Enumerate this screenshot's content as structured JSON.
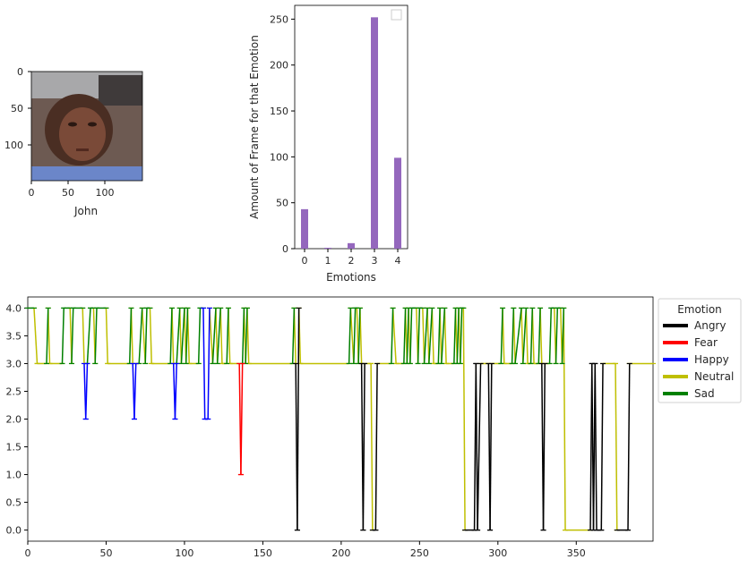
{
  "image_panel": {
    "xlabel": "John",
    "yticks": [
      "0",
      "50",
      "100"
    ],
    "xticks": [
      "0",
      "50",
      "100"
    ],
    "icon": "face-photo"
  },
  "chart_data": [
    {
      "type": "bar",
      "categories": [
        "0",
        "1",
        "2",
        "3",
        "4"
      ],
      "values": [
        43,
        1,
        6,
        252,
        99
      ],
      "xlabel": "Emotions",
      "ylabel": "Amount of Frame for that Emotion",
      "ylim": [
        0,
        265
      ],
      "yticks": [
        "0",
        "50",
        "100",
        "150",
        "200",
        "250"
      ],
      "color": "#9467bd",
      "legend": "top-right (empty)"
    },
    {
      "type": "line",
      "xlim": [
        0,
        399
      ],
      "ylim": [
        -0.2,
        4.2
      ],
      "xticks": [
        "0",
        "50",
        "100",
        "150",
        "200",
        "250",
        "300",
        "350"
      ],
      "yticks": [
        "0.0",
        "0.5",
        "1.0",
        "1.5",
        "2.0",
        "2.5",
        "3.0",
        "3.5",
        "4.0"
      ],
      "legend_title": "Emotion",
      "legend_placement": "outside-right",
      "series": [
        {
          "name": "Angry",
          "color": "#000000"
        },
        {
          "name": "Fear",
          "color": "#ff0000"
        },
        {
          "name": "Happy",
          "color": "#0000ff"
        },
        {
          "name": "Neutral",
          "color": "#bfbf00"
        },
        {
          "name": "Sad",
          "color": "#008000"
        }
      ],
      "segments": [
        [
          0,
          4,
          4,
          4,
          "Sad"
        ],
        [
          4,
          4,
          6,
          3,
          "Neutral"
        ],
        [
          6,
          3,
          12,
          3,
          "Neutral"
        ],
        [
          12,
          3,
          13,
          4,
          "Sad"
        ],
        [
          13,
          4,
          14,
          3,
          "Neutral"
        ],
        [
          14,
          3,
          22,
          3,
          "Neutral"
        ],
        [
          22,
          3,
          23,
          4,
          "Sad"
        ],
        [
          23,
          4,
          27,
          4,
          "Sad"
        ],
        [
          27,
          4,
          28,
          3,
          "Neutral"
        ],
        [
          28,
          3,
          29,
          4,
          "Sad"
        ],
        [
          29,
          4,
          35,
          4,
          "Sad"
        ],
        [
          35,
          4,
          36,
          3,
          "Neutral"
        ],
        [
          36,
          3,
          37,
          2,
          "Happy"
        ],
        [
          37,
          2,
          38,
          3,
          "Happy"
        ],
        [
          38,
          3,
          40,
          4,
          "Sad"
        ],
        [
          40,
          4,
          42,
          4,
          "Sad"
        ],
        [
          42,
          4,
          43,
          3,
          "Neutral"
        ],
        [
          43,
          3,
          44,
          4,
          "Sad"
        ],
        [
          44,
          4,
          50,
          4,
          "Sad"
        ],
        [
          50,
          4,
          51,
          3,
          "Neutral"
        ],
        [
          51,
          3,
          65,
          3,
          "Neutral"
        ],
        [
          65,
          3,
          66,
          4,
          "Sad"
        ],
        [
          66,
          4,
          67,
          3,
          "Neutral"
        ],
        [
          67,
          3,
          68,
          2,
          "Happy"
        ],
        [
          68,
          2,
          69,
          3,
          "Happy"
        ],
        [
          69,
          3,
          71,
          3,
          "Neutral"
        ],
        [
          71,
          3,
          73,
          4,
          "Sad"
        ],
        [
          73,
          4,
          75,
          3,
          "Neutral"
        ],
        [
          75,
          3,
          76,
          4,
          "Sad"
        ],
        [
          76,
          4,
          78,
          4,
          "Sad"
        ],
        [
          78,
          4,
          79,
          3,
          "Neutral"
        ],
        [
          79,
          3,
          91,
          3,
          "Neutral"
        ],
        [
          91,
          3,
          92,
          4,
          "Sad"
        ],
        [
          92,
          4,
          93,
          3,
          "Neutral"
        ],
        [
          93,
          3,
          94,
          2,
          "Happy"
        ],
        [
          94,
          2,
          95,
          3,
          "Happy"
        ],
        [
          95,
          3,
          97,
          4,
          "Sad"
        ],
        [
          97,
          4,
          98,
          3,
          "Neutral"
        ],
        [
          98,
          3,
          100,
          4,
          "Sad"
        ],
        [
          100,
          4,
          101,
          3,
          "Neutral"
        ],
        [
          101,
          3,
          102,
          4,
          "Sad"
        ],
        [
          102,
          4,
          103,
          3,
          "Neutral"
        ],
        [
          103,
          3,
          109,
          3,
          "Neutral"
        ],
        [
          109,
          3,
          110,
          4,
          "Sad"
        ],
        [
          110,
          4,
          112,
          4,
          "Sad"
        ],
        [
          112,
          4,
          113,
          2,
          "Happy"
        ],
        [
          113,
          2,
          115,
          2,
          "Happy"
        ],
        [
          115,
          2,
          116,
          4,
          "Happy"
        ],
        [
          116,
          4,
          118,
          3,
          "Neutral"
        ],
        [
          118,
          3,
          120,
          4,
          "Sad"
        ],
        [
          120,
          4,
          121,
          3,
          "Neutral"
        ],
        [
          121,
          3,
          123,
          4,
          "Sad"
        ],
        [
          123,
          4,
          124,
          3,
          "Neutral"
        ],
        [
          124,
          3,
          127,
          3,
          "Neutral"
        ],
        [
          127,
          3,
          128,
          4,
          "Sad"
        ],
        [
          128,
          4,
          129,
          3,
          "Neutral"
        ],
        [
          129,
          3,
          135,
          3,
          "Neutral"
        ],
        [
          135,
          3,
          136,
          1,
          "Fear"
        ],
        [
          136,
          1,
          137,
          3,
          "Fear"
        ],
        [
          137,
          3,
          138,
          4,
          "Sad"
        ],
        [
          138,
          4,
          139,
          3,
          "Neutral"
        ],
        [
          139,
          3,
          140,
          4,
          "Sad"
        ],
        [
          140,
          4,
          141,
          3,
          "Neutral"
        ],
        [
          141,
          3,
          169,
          3,
          "Neutral"
        ],
        [
          169,
          3,
          170,
          4,
          "Sad"
        ],
        [
          170,
          4,
          171,
          3,
          "Neutral"
        ],
        [
          171,
          3,
          172,
          0,
          "Angry"
        ],
        [
          172,
          0,
          173,
          4,
          "Angry"
        ],
        [
          173,
          4,
          174,
          3,
          "Neutral"
        ],
        [
          174,
          3,
          205,
          3,
          "Neutral"
        ],
        [
          205,
          3,
          206,
          4,
          "Sad"
        ],
        [
          206,
          4,
          208,
          3,
          "Neutral"
        ],
        [
          208,
          3,
          209,
          4,
          "Sad"
        ],
        [
          209,
          4,
          210,
          4,
          "Sad"
        ],
        [
          210,
          4,
          211,
          3,
          "Neutral"
        ],
        [
          211,
          3,
          212,
          4,
          "Sad"
        ],
        [
          212,
          4,
          213,
          3,
          "Neutral"
        ],
        [
          213,
          3,
          214,
          0,
          "Angry"
        ],
        [
          214,
          0,
          215,
          3,
          "Angry"
        ],
        [
          215,
          3,
          219,
          3,
          "Neutral"
        ],
        [
          219,
          3,
          220,
          0,
          "Neutral"
        ],
        [
          220,
          0,
          222,
          0,
          "Angry"
        ],
        [
          222,
          0,
          223,
          3,
          "Angry"
        ],
        [
          223,
          3,
          232,
          3,
          "Neutral"
        ],
        [
          232,
          3,
          233,
          4,
          "Sad"
        ],
        [
          233,
          4,
          235,
          3,
          "Neutral"
        ],
        [
          235,
          3,
          240,
          3,
          "Neutral"
        ],
        [
          240,
          3,
          241,
          4,
          "Sad"
        ],
        [
          241,
          4,
          242,
          3,
          "Neutral"
        ],
        [
          242,
          3,
          243,
          4,
          "Sad"
        ],
        [
          243,
          4,
          244,
          3,
          "Neutral"
        ],
        [
          244,
          3,
          245,
          4,
          "Sad"
        ],
        [
          245,
          4,
          248,
          4,
          "Sad"
        ],
        [
          248,
          4,
          249,
          3,
          "Neutral"
        ],
        [
          249,
          3,
          250,
          4,
          "Sad"
        ],
        [
          250,
          4,
          252,
          4,
          "Sad"
        ],
        [
          252,
          4,
          253,
          3,
          "Neutral"
        ],
        [
          253,
          3,
          255,
          4,
          "Sad"
        ],
        [
          255,
          4,
          256,
          3,
          "Neutral"
        ],
        [
          256,
          3,
          258,
          4,
          "Sad"
        ],
        [
          258,
          4,
          259,
          3,
          "Neutral"
        ],
        [
          259,
          3,
          262,
          3,
          "Neutral"
        ],
        [
          262,
          3,
          263,
          4,
          "Sad"
        ],
        [
          263,
          4,
          264,
          3,
          "Neutral"
        ],
        [
          264,
          3,
          266,
          4,
          "Sad"
        ],
        [
          266,
          4,
          267,
          3,
          "Neutral"
        ],
        [
          267,
          3,
          272,
          3,
          "Neutral"
        ],
        [
          272,
          3,
          273,
          4,
          "Sad"
        ],
        [
          273,
          4,
          274,
          3,
          "Neutral"
        ],
        [
          274,
          3,
          275,
          4,
          "Sad"
        ],
        [
          275,
          4,
          276,
          3,
          "Neutral"
        ],
        [
          276,
          3,
          277,
          4,
          "Sad"
        ],
        [
          277,
          4,
          278,
          4,
          "Sad"
        ],
        [
          278,
          4,
          279,
          0,
          "Neutral"
        ],
        [
          279,
          0,
          285,
          0,
          "Angry"
        ],
        [
          285,
          0,
          286,
          3,
          "Angry"
        ],
        [
          286,
          3,
          287,
          0,
          "Angry"
        ],
        [
          287,
          0,
          289,
          3,
          "Angry"
        ],
        [
          289,
          3,
          294,
          3,
          "Neutral"
        ],
        [
          294,
          3,
          295,
          0,
          "Angry"
        ],
        [
          295,
          0,
          296,
          3,
          "Angry"
        ],
        [
          296,
          3,
          302,
          3,
          "Neutral"
        ],
        [
          302,
          3,
          303,
          4,
          "Sad"
        ],
        [
          303,
          4,
          304,
          3,
          "Neutral"
        ],
        [
          304,
          3,
          309,
          3,
          "Neutral"
        ],
        [
          309,
          3,
          310,
          4,
          "Sad"
        ],
        [
          310,
          4,
          311,
          3,
          "Neutral"
        ],
        [
          311,
          3,
          315,
          4,
          "Sad"
        ],
        [
          315,
          4,
          316,
          3,
          "Neutral"
        ],
        [
          316,
          3,
          318,
          4,
          "Sad"
        ],
        [
          318,
          4,
          319,
          3,
          "Neutral"
        ],
        [
          319,
          3,
          321,
          3,
          "Neutral"
        ],
        [
          321,
          3,
          322,
          4,
          "Sad"
        ],
        [
          322,
          4,
          323,
          3,
          "Neutral"
        ],
        [
          323,
          3,
          326,
          3,
          "Neutral"
        ],
        [
          326,
          3,
          327,
          4,
          "Sad"
        ],
        [
          327,
          4,
          328,
          3,
          "Neutral"
        ],
        [
          328,
          3,
          329,
          0,
          "Angry"
        ],
        [
          329,
          0,
          330,
          3,
          "Angry"
        ],
        [
          330,
          3,
          333,
          3,
          "Neutral"
        ],
        [
          333,
          3,
          334,
          4,
          "Sad"
        ],
        [
          334,
          4,
          336,
          4,
          "Sad"
        ],
        [
          336,
          4,
          337,
          3,
          "Neutral"
        ],
        [
          337,
          3,
          338,
          4,
          "Sad"
        ],
        [
          338,
          4,
          340,
          4,
          "Sad"
        ],
        [
          340,
          4,
          341,
          3,
          "Neutral"
        ],
        [
          341,
          3,
          342,
          4,
          "Sad"
        ],
        [
          342,
          4,
          343,
          0,
          "Neutral"
        ],
        [
          343,
          0,
          359,
          0,
          "Neutral"
        ],
        [
          359,
          0,
          360,
          3,
          "Angry"
        ],
        [
          360,
          3,
          361,
          0,
          "Angry"
        ],
        [
          361,
          0,
          362,
          3,
          "Angry"
        ],
        [
          362,
          3,
          363,
          0,
          "Angry"
        ],
        [
          363,
          0,
          366,
          0,
          "Angry"
        ],
        [
          366,
          0,
          367,
          3,
          "Angry"
        ],
        [
          367,
          3,
          375,
          3,
          "Neutral"
        ],
        [
          375,
          3,
          376,
          0,
          "Neutral"
        ],
        [
          376,
          0,
          383,
          0,
          "Angry"
        ],
        [
          383,
          0,
          384,
          3,
          "Angry"
        ],
        [
          384,
          3,
          399,
          3,
          "Neutral"
        ]
      ]
    }
  ]
}
